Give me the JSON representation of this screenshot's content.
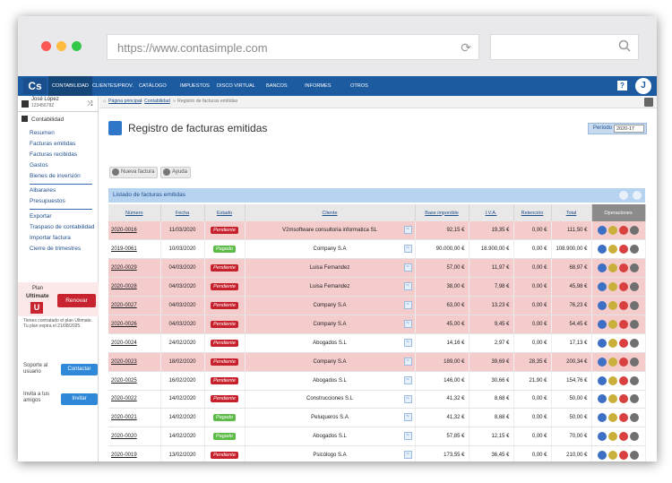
{
  "browser": {
    "url": "https://www.contasimple.com"
  },
  "topnav": {
    "logo": "Cs",
    "items": [
      "CONTABILIDAD",
      "CLIENTES/PROV.",
      "CATÁLOGO",
      "IMPUESTOS",
      "DISCO VIRTUAL",
      "BANCOS",
      "INFORMES",
      "OTROS"
    ],
    "help": "?",
    "avatar": "J"
  },
  "sidebar": {
    "user_name": "José López",
    "user_id": "12345678Z",
    "section": "Contabilidad",
    "group1": [
      "Resumen",
      "Facturas emitidas",
      "Facturas recibidas",
      "Gastos",
      "Bienes de inversión"
    ],
    "group2": [
      "Albaranes",
      "Presupuestos"
    ],
    "group3": [
      "Exportar",
      "Traspaso de contabilidad",
      "Importar factura",
      "Cierre de trimestres"
    ],
    "plan_label": "Plan",
    "plan_name": "Ultimate",
    "plan_letter": "U",
    "renew_label": "Renovar",
    "plan_note": "Tienes contratado el plan Ultimate. Tu plan expira el 21/08/2025.",
    "support_label": "Soporte al usuario",
    "support_btn": "Contactar",
    "invite_label": "Invita a tus amigos",
    "invite_btn": "Invitar"
  },
  "breadcrumb": [
    "Página principal",
    "Contabilidad",
    "Registro de facturas emitidas"
  ],
  "page": {
    "title": "Registro de facturas emitidas",
    "period_label": "Período",
    "period_value": "2020-1T",
    "new_invoice": "Nueva factura",
    "help": "Ayuda",
    "list_title": "Listado de facturas emitidas"
  },
  "table": {
    "headers": [
      "Número",
      "Fecha",
      "Estado",
      "Cliente",
      "Base imponible",
      "I.V.A.",
      "Retención",
      "Total",
      "Operaciones"
    ],
    "rows": [
      {
        "num": "2020-0016",
        "date": "11/03/2020",
        "status": "Pendiente",
        "client": "V2msoftware consultoria informatica SL",
        "base": "92,15 €",
        "iva": "19,35 €",
        "ret": "0,00 €",
        "total": "111,50 €",
        "pink": true
      },
      {
        "num": "2019-0061",
        "date": "10/03/2020",
        "status": "Pagado",
        "client": "Company S.A",
        "base": "90.000,00 €",
        "iva": "18.900,00 €",
        "ret": "0,00 €",
        "total": "108.900,00 €",
        "pink": false
      },
      {
        "num": "2020-0029",
        "date": "04/03/2020",
        "status": "Pendiente",
        "client": "Luisa Fernandez",
        "base": "57,00 €",
        "iva": "11,97 €",
        "ret": "0,00 €",
        "total": "68,97 €",
        "pink": true
      },
      {
        "num": "2020-0028",
        "date": "04/03/2020",
        "status": "Pendiente",
        "client": "Luisa Fernandez",
        "base": "38,00 €",
        "iva": "7,98 €",
        "ret": "0,00 €",
        "total": "45,98 €",
        "pink": true
      },
      {
        "num": "2020-0027",
        "date": "04/03/2020",
        "status": "Pendiente",
        "client": "Company S.A",
        "base": "63,00 €",
        "iva": "13,23 €",
        "ret": "0,00 €",
        "total": "76,23 €",
        "pink": true
      },
      {
        "num": "2020-0026",
        "date": "04/03/2020",
        "status": "Pendiente",
        "client": "Company S.A",
        "base": "45,00 €",
        "iva": "9,45 €",
        "ret": "0,00 €",
        "total": "54,45 €",
        "pink": true
      },
      {
        "num": "2020-0024",
        "date": "24/02/2020",
        "status": "Pendiente",
        "client": "Abogados S.L",
        "base": "14,16 €",
        "iva": "2,97 €",
        "ret": "0,00 €",
        "total": "17,13 €",
        "pink": false
      },
      {
        "num": "2020-0023",
        "date": "18/02/2020",
        "status": "Pendiente",
        "client": "Company S.A",
        "base": "189,00 €",
        "iva": "39,69 €",
        "ret": "28,35 €",
        "total": "200,34 €",
        "pink": true
      },
      {
        "num": "2020-0025",
        "date": "16/02/2020",
        "status": "Pendiente",
        "client": "Abogados S.L",
        "base": "146,00 €",
        "iva": "30,66 €",
        "ret": "21,90 €",
        "total": "154,76 €",
        "pink": false
      },
      {
        "num": "2020-0022",
        "date": "14/02/2020",
        "status": "Pendiente",
        "client": "Construcciones S.L",
        "base": "41,32 €",
        "iva": "8,68 €",
        "ret": "0,00 €",
        "total": "50,00 €",
        "pink": false
      },
      {
        "num": "2020-0021",
        "date": "14/02/2020",
        "status": "Pagado",
        "client": "Peluqueros S.A",
        "base": "41,32 €",
        "iva": "8,68 €",
        "ret": "0,00 €",
        "total": "50,00 €",
        "pink": false
      },
      {
        "num": "2020-0020",
        "date": "14/02/2020",
        "status": "Pagado",
        "client": "Abogados S.L",
        "base": "57,85 €",
        "iva": "12,15 €",
        "ret": "0,00 €",
        "total": "70,00 €",
        "pink": false
      },
      {
        "num": "2020-0019",
        "date": "13/02/2020",
        "status": "Pendiente",
        "client": "Psicólogo S.A",
        "base": "173,55 €",
        "iva": "36,45 €",
        "ret": "0,00 €",
        "total": "210,00 €",
        "pink": false
      }
    ]
  },
  "colors": {
    "nav": "#1d5ba1",
    "pending": "#c7212d",
    "paid": "#5dbb48",
    "row_pink": "#f4cccc"
  }
}
